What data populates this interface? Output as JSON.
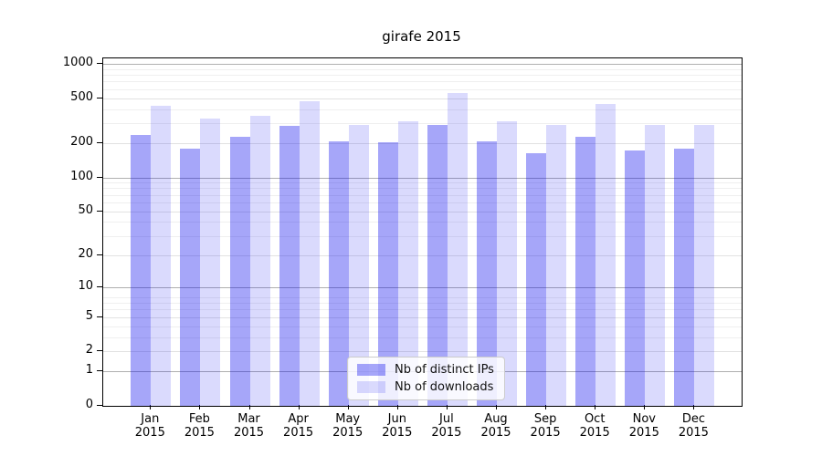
{
  "chart_data": {
    "type": "bar",
    "title": "girafe 2015",
    "categories": [
      "Jan 2015",
      "Feb 2015",
      "Mar 2015",
      "Apr 2015",
      "May 2015",
      "Jun 2015",
      "Jul 2015",
      "Aug 2015",
      "Sep 2015",
      "Oct 2015",
      "Nov 2015",
      "Dec 2015"
    ],
    "series": [
      {
        "name": "Nb of distinct IPs",
        "color": "rgba(0,0,238,0.35)",
        "values": [
          235,
          181,
          230,
          287,
          207,
          203,
          293,
          207,
          165,
          230,
          174,
          179
        ]
      },
      {
        "name": "Nb of downloads",
        "color": "rgba(0,0,238,0.145)",
        "values": [
          425,
          329,
          348,
          473,
          288,
          310,
          556,
          312,
          290,
          440,
          290,
          288
        ]
      }
    ],
    "xlabel": "",
    "ylabel": "",
    "yscale": "log1p",
    "ylim": [
      0,
      1116
    ],
    "ytick_values": [
      1000,
      500,
      200,
      100,
      50,
      20,
      10,
      5,
      2,
      1,
      0
    ],
    "grid": "both",
    "legend_position": "lower-center-inside"
  },
  "legend": {
    "items": [
      {
        "label": "Nb of distinct IPs"
      },
      {
        "label": "Nb of downloads"
      }
    ]
  }
}
